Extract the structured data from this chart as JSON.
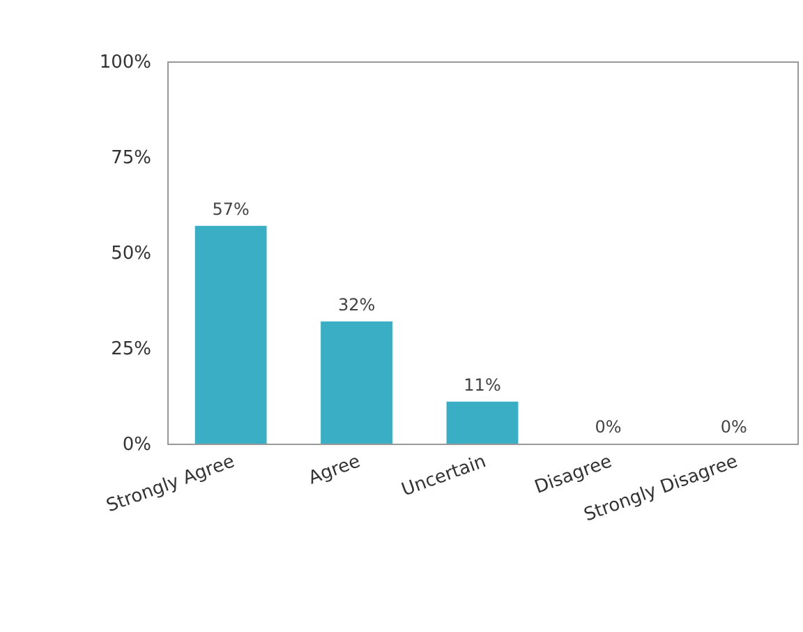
{
  "chart_data": {
    "type": "bar",
    "categories": [
      "Strongly Agree",
      "Agree",
      "Uncertain",
      "Disagree",
      "Strongly Disagree"
    ],
    "values": [
      57,
      32,
      11,
      0,
      0
    ],
    "value_labels": [
      "57%",
      "32%",
      "11%",
      "0%",
      "0%"
    ],
    "color": "#3aaec4",
    "ylim": [
      0,
      100
    ],
    "yticks": [
      {
        "value": 0,
        "label": "0%"
      },
      {
        "value": 25,
        "label": "25%"
      },
      {
        "value": 50,
        "label": "50%"
      },
      {
        "value": 75,
        "label": "75%"
      },
      {
        "value": 100,
        "label": "100%"
      }
    ],
    "grid": false
  }
}
